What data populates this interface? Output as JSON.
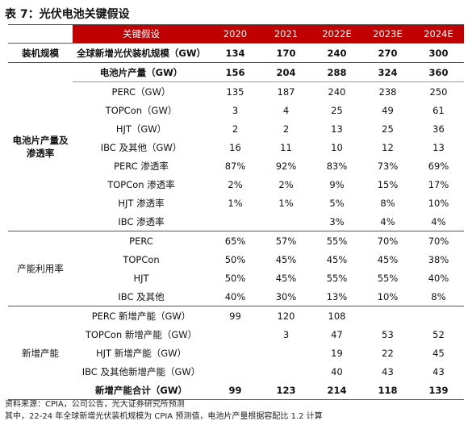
{
  "title": "表 7：光伏电池关键假设",
  "table": {
    "header": [
      "关键假设",
      "2020",
      "2021",
      "2022E",
      "2023E",
      "2024E"
    ],
    "groups": [
      {
        "label": "装机规模",
        "rows": [
          [
            "全球新增光伏装机规模（GW）",
            "134",
            "170",
            "240",
            "270",
            "300"
          ]
        ]
      },
      {
        "label": "电池片产量及渗透率",
        "rows": [
          [
            "电池片产量（GW）",
            "156",
            "204",
            "288",
            "324",
            "360"
          ],
          [
            "PERC（GW）",
            "135",
            "187",
            "240",
            "238",
            "250"
          ],
          [
            "TOPCon（GW）",
            "3",
            "4",
            "25",
            "49",
            "61"
          ],
          [
            "HJT（GW）",
            "2",
            "2",
            "13",
            "25",
            "36"
          ],
          [
            "IBC 及其他（GW）",
            "16",
            "11",
            "10",
            "12",
            "13"
          ],
          [
            "PERC 渗透率",
            "87%",
            "92%",
            "83%",
            "73%",
            "69%"
          ],
          [
            "TOPCon 渗透率",
            "2%",
            "2%",
            "9%",
            "15%",
            "17%"
          ],
          [
            "HJT 渗透率",
            "1%",
            "1%",
            "5%",
            "8%",
            "10%"
          ],
          [
            "IBC 渗透率",
            null,
            null,
            "3%",
            "4%",
            "4%"
          ]
        ]
      },
      {
        "label": "产能利用率",
        "rows": [
          [
            "PERC",
            "65%",
            "57%",
            "55%",
            "70%",
            "70%"
          ],
          [
            "TOPCon",
            "50%",
            "45%",
            "45%",
            "45%",
            "38%"
          ],
          [
            "HJT",
            "50%",
            "45%",
            "55%",
            "55%",
            "40%"
          ],
          [
            "IBC 及其他",
            "40%",
            "30%",
            "13%",
            "10%",
            "8%"
          ]
        ]
      },
      {
        "label": "新增产能",
        "rows": [
          [
            "PERC 新增产能（GW）",
            "99",
            "120",
            "108",
            null,
            null
          ],
          [
            "TOPCon 新增产能（GW）",
            null,
            "3",
            "47",
            "53",
            "52"
          ],
          [
            "HJT 新增产能（GW）",
            null,
            null,
            "19",
            "22",
            "45"
          ],
          [
            "IBC 及其他新增产能（GW）",
            null,
            null,
            "40",
            "43",
            "43"
          ],
          [
            "新增产能合计（GW）",
            "99",
            "123",
            "214",
            "118",
            "139"
          ]
        ]
      }
    ]
  },
  "notes": [
    "资料来源：CPIA，公司公告，光大证券研究所预测",
    "其中，22-24 年全球新增光伏装机规模为 CPIA 预测值，电池片产量根据容配比 1.2 计算"
  ]
}
